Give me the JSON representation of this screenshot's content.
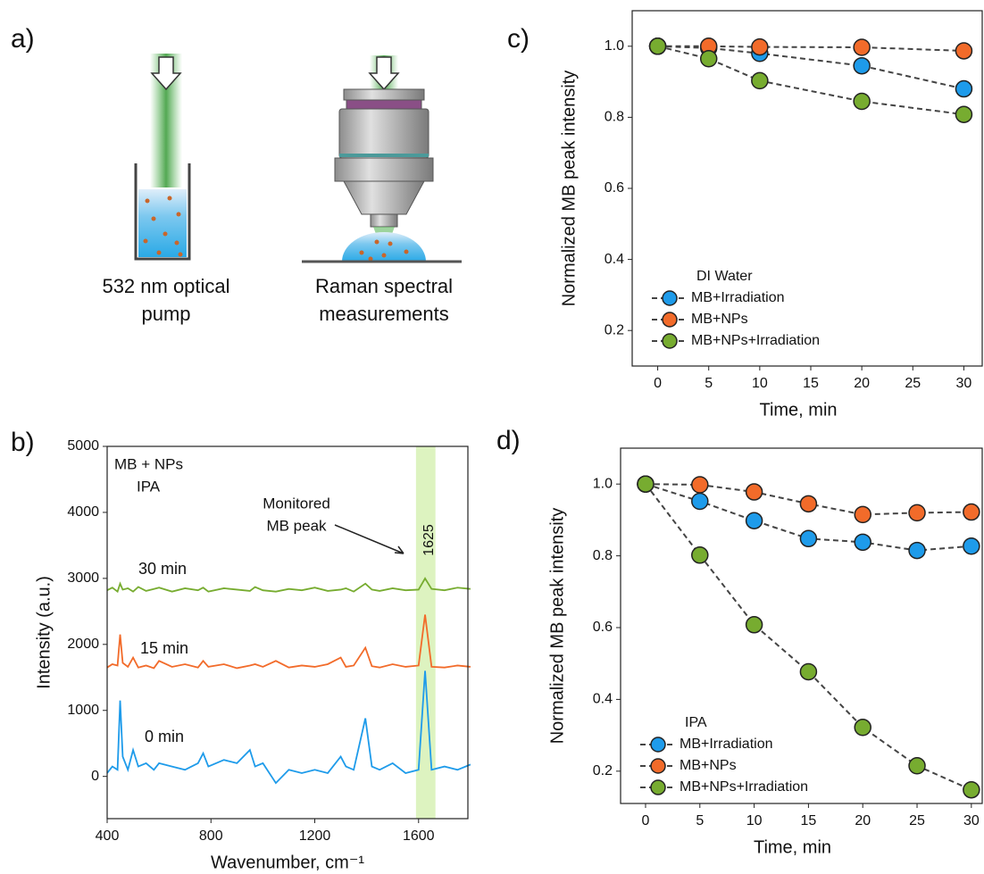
{
  "panel_labels": [
    "a)",
    "b)",
    "c)",
    "d)"
  ],
  "diagram": {
    "pump_label": [
      "532 nm optical",
      "pump"
    ],
    "raman_label": [
      "Raman spectral",
      "measurements"
    ]
  },
  "chart_data": [
    {
      "type": "line",
      "xlabel": "Wavenumber, cm⁻¹",
      "ylabel": "Intensity (a.u.)",
      "annotations": [
        "MB + NPs",
        "IPA",
        "Monitored",
        "MB peak",
        "1625"
      ],
      "highlight": [
        1590,
        1665
      ],
      "x": [
        400,
        420,
        440,
        450,
        460,
        480,
        500,
        520,
        550,
        580,
        600,
        650,
        700,
        750,
        770,
        790,
        850,
        900,
        950,
        970,
        1000,
        1050,
        1100,
        1150,
        1200,
        1250,
        1300,
        1320,
        1350,
        1395,
        1420,
        1450,
        1500,
        1550,
        1600,
        1625,
        1650,
        1700,
        1750,
        1800
      ],
      "series": [
        {
          "name": "30 min",
          "color": "#77ac30",
          "values": [
            2820,
            2860,
            2800,
            2920,
            2830,
            2850,
            2800,
            2870,
            2810,
            2840,
            2860,
            2800,
            2850,
            2820,
            2860,
            2800,
            2850,
            2830,
            2810,
            2870,
            2820,
            2800,
            2840,
            2820,
            2860,
            2810,
            2830,
            2850,
            2800,
            2920,
            2830,
            2810,
            2850,
            2820,
            2830,
            3000,
            2840,
            2820,
            2860,
            2840
          ]
        },
        {
          "name": "15 min",
          "color": "#f26b2a",
          "values": [
            1650,
            1700,
            1680,
            2150,
            1720,
            1660,
            1800,
            1650,
            1680,
            1640,
            1750,
            1660,
            1700,
            1650,
            1750,
            1660,
            1700,
            1640,
            1680,
            1700,
            1660,
            1750,
            1650,
            1680,
            1660,
            1700,
            1800,
            1660,
            1680,
            1950,
            1670,
            1650,
            1700,
            1660,
            1680,
            2450,
            1660,
            1650,
            1680,
            1660
          ]
        },
        {
          "name": "0 min",
          "color": "#1e9bea",
          "values": [
            50,
            150,
            100,
            1150,
            300,
            100,
            400,
            150,
            200,
            100,
            200,
            150,
            100,
            200,
            350,
            150,
            250,
            200,
            400,
            150,
            200,
            -100,
            100,
            50,
            100,
            50,
            300,
            150,
            100,
            880,
            150,
            100,
            200,
            50,
            100,
            1600,
            100,
            150,
            100,
            180
          ]
        }
      ],
      "xlim": [
        400,
        1790
      ],
      "xticks": [
        400,
        800,
        1200,
        1600
      ],
      "ylim": [
        -640,
        5000
      ],
      "yticks": [
        0,
        1000,
        2000,
        3000,
        4000,
        5000
      ]
    },
    {
      "type": "line",
      "xlabel": "Time, min",
      "ylabel": "Normalized MB peak intensity",
      "legend_title": "DI Water",
      "line_style": "dashed",
      "markers": true,
      "x": [
        0,
        5,
        10,
        20,
        30
      ],
      "series": [
        {
          "name": "MB+Irradiation",
          "color": "#1e9bea",
          "values": [
            1.0,
            0.995,
            0.98,
            0.945,
            0.88
          ]
        },
        {
          "name": "MB+NPs",
          "color": "#f26b2a",
          "values": [
            1.0,
            1.0,
            0.998,
            0.997,
            0.987
          ]
        },
        {
          "name": "MB+NPs+Irradiation",
          "color": "#77ac30",
          "values": [
            1.0,
            0.965,
            0.903,
            0.845,
            0.808
          ]
        }
      ],
      "xlim": [
        -2.5,
        31.8
      ],
      "xticks": [
        0,
        5,
        10,
        15,
        20,
        25,
        30
      ],
      "ylim": [
        0.1,
        1.1
      ],
      "yticks": [
        0.2,
        0.4,
        0.6,
        0.8,
        {
          "value": 1,
          "label": "1.0"
        }
      ]
    },
    {
      "type": "line",
      "xlabel": "Time, min",
      "ylabel": "Normalized MB peak intensity",
      "legend_title": "IPA",
      "line_style": "dashed",
      "markers": true,
      "x": [
        0,
        5,
        10,
        15,
        20,
        25,
        30
      ],
      "series": [
        {
          "name": "MB+Irradiation",
          "color": "#1e9bea",
          "values": [
            1.0,
            0.952,
            0.898,
            0.848,
            0.838,
            0.815,
            0.827
          ]
        },
        {
          "name": "MB+NPs",
          "color": "#f26b2a",
          "values": [
            1.0,
            0.998,
            0.978,
            0.945,
            0.915,
            0.92,
            0.922
          ]
        },
        {
          "name": "MB+NPs+Irradiation",
          "color": "#77ac30",
          "values": [
            1.0,
            0.802,
            0.608,
            0.477,
            0.322,
            0.215,
            0.148
          ]
        }
      ],
      "xlim": [
        -2.3,
        31.0
      ],
      "xticks": [
        0,
        5,
        10,
        15,
        20,
        25,
        30
      ],
      "ylim": [
        0.11,
        1.1
      ],
      "yticks": [
        0.2,
        0.4,
        0.6,
        0.8,
        {
          "value": 1,
          "label": "1.0"
        }
      ]
    }
  ]
}
